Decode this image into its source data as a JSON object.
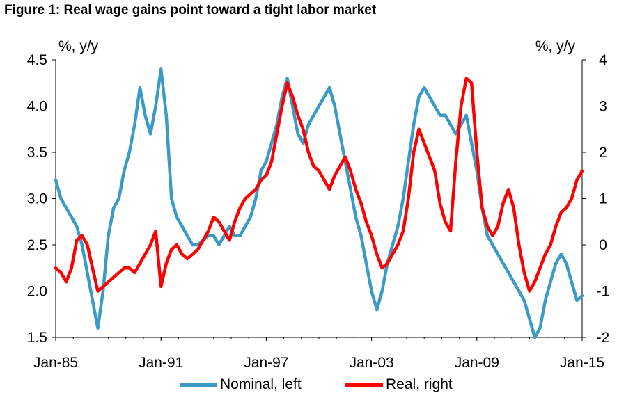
{
  "title": "Figure 1: Real wage gains point toward a tight labor market",
  "chart_data": {
    "type": "line",
    "title": "Figure 1: Real wage gains point toward a tight labor market",
    "y_left": {
      "unit": "%, y/y",
      "min": 1.5,
      "max": 4.5,
      "ticks": [
        "4.5",
        "4.0",
        "3.5",
        "3.0",
        "2.5",
        "2.0",
        "1.5"
      ]
    },
    "y_right": {
      "unit": "%, y/y",
      "min": -2,
      "max": 4,
      "ticks": [
        "4",
        "3",
        "2",
        "1",
        "0",
        "-1",
        "-2"
      ]
    },
    "x": {
      "min": 1985.0,
      "max": 2015.0,
      "ticks": [
        "Jan-85",
        "Jan-91",
        "Jan-97",
        "Jan-03",
        "Jan-09",
        "Jan-15"
      ],
      "tick_values": [
        1985,
        1991,
        1997,
        2003,
        2009,
        2015
      ]
    },
    "grid": false,
    "legend_position": "bottom",
    "series": [
      {
        "name": "Nominal, left",
        "axis": "left",
        "color": "#3c9ac6",
        "x": [
          1985.0,
          1985.3,
          1985.6,
          1985.9,
          1986.2,
          1986.5,
          1986.8,
          1987.1,
          1987.4,
          1987.7,
          1988.0,
          1988.3,
          1988.6,
          1988.9,
          1989.2,
          1989.5,
          1989.8,
          1990.1,
          1990.4,
          1990.7,
          1991.0,
          1991.3,
          1991.6,
          1991.9,
          1992.2,
          1992.5,
          1992.8,
          1993.1,
          1993.4,
          1993.7,
          1994.0,
          1994.3,
          1994.6,
          1994.9,
          1995.2,
          1995.5,
          1995.8,
          1996.1,
          1996.4,
          1996.7,
          1997.0,
          1997.3,
          1997.6,
          1997.9,
          1998.2,
          1998.5,
          1998.8,
          1999.1,
          1999.4,
          1999.7,
          2000.0,
          2000.3,
          2000.6,
          2000.9,
          2001.2,
          2001.5,
          2001.8,
          2002.1,
          2002.4,
          2002.7,
          2003.0,
          2003.3,
          2003.6,
          2003.9,
          2004.2,
          2004.5,
          2004.8,
          2005.1,
          2005.4,
          2005.7,
          2006.0,
          2006.3,
          2006.6,
          2006.9,
          2007.2,
          2007.5,
          2007.8,
          2008.1,
          2008.4,
          2008.7,
          2009.0,
          2009.3,
          2009.6,
          2009.9,
          2010.2,
          2010.5,
          2010.8,
          2011.1,
          2011.4,
          2011.7,
          2012.0,
          2012.3,
          2012.6,
          2012.9,
          2013.2,
          2013.5,
          2013.8,
          2014.1,
          2014.4,
          2014.7,
          2015.0
        ],
        "values": [
          3.2,
          3.0,
          2.9,
          2.8,
          2.7,
          2.5,
          2.2,
          1.9,
          1.6,
          2.0,
          2.6,
          2.9,
          3.0,
          3.3,
          3.5,
          3.8,
          4.2,
          3.9,
          3.7,
          4.0,
          4.4,
          3.9,
          3.0,
          2.8,
          2.7,
          2.6,
          2.5,
          2.5,
          2.55,
          2.6,
          2.6,
          2.5,
          2.6,
          2.7,
          2.6,
          2.6,
          2.7,
          2.8,
          3.0,
          3.3,
          3.4,
          3.6,
          3.8,
          4.1,
          4.3,
          4.0,
          3.7,
          3.6,
          3.8,
          3.9,
          4.0,
          4.1,
          4.2,
          4.0,
          3.7,
          3.4,
          3.1,
          2.8,
          2.6,
          2.3,
          2.0,
          1.8,
          2.0,
          2.3,
          2.5,
          2.7,
          3.0,
          3.4,
          3.8,
          4.1,
          4.2,
          4.1,
          4.0,
          3.9,
          3.9,
          3.8,
          3.7,
          3.8,
          3.9,
          3.6,
          3.3,
          2.9,
          2.6,
          2.5,
          2.4,
          2.3,
          2.2,
          2.1,
          2.0,
          1.9,
          1.7,
          1.5,
          1.6,
          1.9,
          2.1,
          2.3,
          2.4,
          2.3,
          2.1,
          1.9,
          1.95
        ]
      },
      {
        "name": "Real, right",
        "axis": "right",
        "color": "#ff0000",
        "x": [
          1985.0,
          1985.3,
          1985.6,
          1985.9,
          1986.2,
          1986.5,
          1986.8,
          1987.1,
          1987.4,
          1987.7,
          1988.0,
          1988.3,
          1988.6,
          1988.9,
          1989.2,
          1989.5,
          1989.8,
          1990.1,
          1990.4,
          1990.7,
          1991.0,
          1991.3,
          1991.6,
          1991.9,
          1992.2,
          1992.5,
          1992.8,
          1993.1,
          1993.4,
          1993.7,
          1994.0,
          1994.3,
          1994.6,
          1994.9,
          1995.2,
          1995.5,
          1995.8,
          1996.1,
          1996.4,
          1996.7,
          1997.0,
          1997.3,
          1997.6,
          1997.9,
          1998.2,
          1998.5,
          1998.8,
          1999.1,
          1999.4,
          1999.7,
          2000.0,
          2000.3,
          2000.6,
          2000.9,
          2001.2,
          2001.5,
          2001.8,
          2002.1,
          2002.4,
          2002.7,
          2003.0,
          2003.3,
          2003.6,
          2003.9,
          2004.2,
          2004.5,
          2004.8,
          2005.1,
          2005.4,
          2005.7,
          2006.0,
          2006.3,
          2006.6,
          2006.9,
          2007.2,
          2007.5,
          2007.8,
          2008.1,
          2008.4,
          2008.7,
          2009.0,
          2009.3,
          2009.6,
          2009.9,
          2010.2,
          2010.5,
          2010.8,
          2011.1,
          2011.4,
          2011.7,
          2012.0,
          2012.3,
          2012.6,
          2012.9,
          2013.2,
          2013.5,
          2013.8,
          2014.1,
          2014.4,
          2014.7,
          2015.0
        ],
        "values": [
          -0.5,
          -0.6,
          -0.8,
          -0.5,
          0.1,
          0.2,
          0.0,
          -0.5,
          -1.0,
          -0.9,
          -0.8,
          -0.7,
          -0.6,
          -0.5,
          -0.5,
          -0.6,
          -0.4,
          -0.2,
          0.0,
          0.3,
          -0.9,
          -0.4,
          -0.1,
          0.0,
          -0.2,
          -0.3,
          -0.2,
          -0.1,
          0.1,
          0.3,
          0.6,
          0.5,
          0.3,
          0.1,
          0.5,
          0.8,
          1.0,
          1.1,
          1.2,
          1.4,
          1.5,
          1.8,
          2.4,
          3.0,
          3.5,
          3.2,
          2.8,
          2.5,
          2.0,
          1.7,
          1.6,
          1.4,
          1.2,
          1.5,
          1.7,
          1.9,
          1.6,
          1.2,
          0.9,
          0.5,
          0.2,
          -0.2,
          -0.5,
          -0.4,
          -0.2,
          0.0,
          0.3,
          1.0,
          2.0,
          2.5,
          2.2,
          1.9,
          1.6,
          0.9,
          0.5,
          0.3,
          1.8,
          3.0,
          3.6,
          3.5,
          2.0,
          0.8,
          0.4,
          0.2,
          0.4,
          0.9,
          1.2,
          0.8,
          0.0,
          -0.6,
          -1.0,
          -0.8,
          -0.5,
          -0.2,
          0.0,
          0.4,
          0.7,
          0.8,
          1.0,
          1.4,
          1.6
        ]
      }
    ]
  },
  "legend": [
    {
      "label": "Nominal, left",
      "color": "#3c9ac6"
    },
    {
      "label": "Real, right",
      "color": "#ff0000"
    }
  ]
}
